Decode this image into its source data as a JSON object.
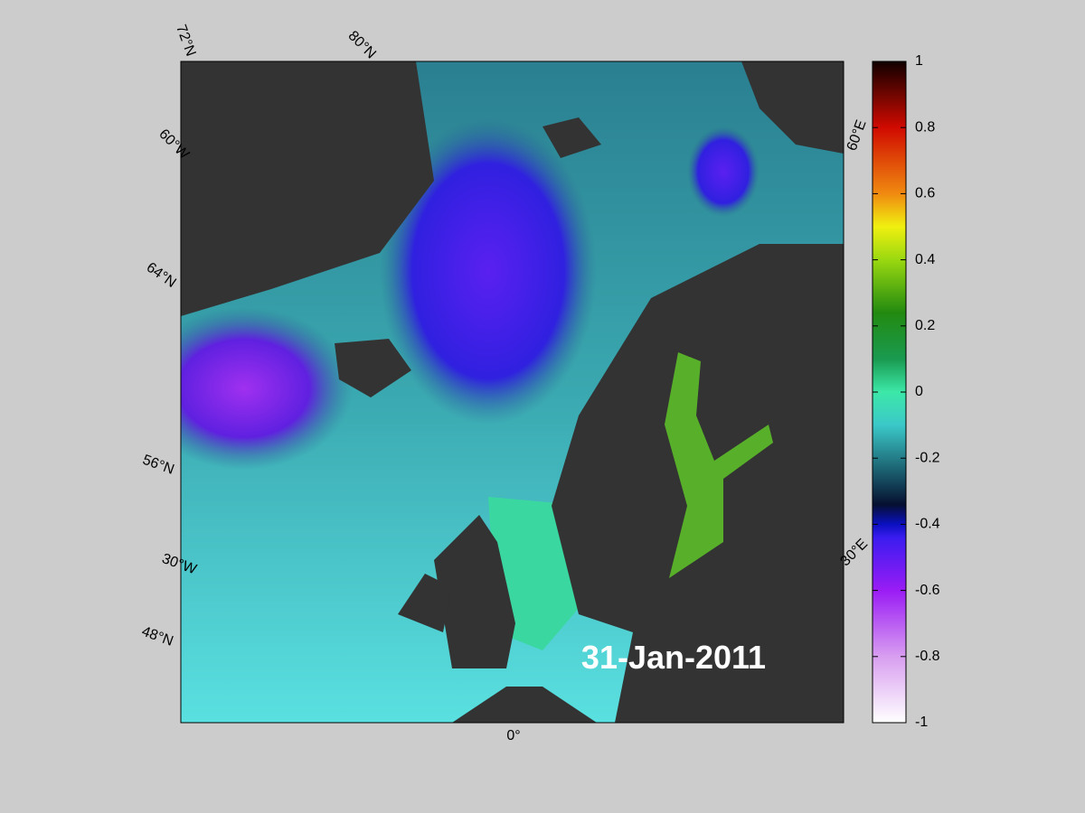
{
  "map": {
    "graticule_labels": [
      "72°N",
      "80°N",
      "60°W",
      "64°N",
      "56°N",
      "30°W",
      "48°N",
      "0°",
      "60°E",
      "30°E"
    ],
    "date": "31-Jan-2011"
  },
  "colorbar": {
    "lim": [
      -1,
      1
    ],
    "ticks": [
      -1,
      -0.8,
      -0.6,
      -0.4,
      -0.2,
      0,
      0.2,
      0.4,
      0.6,
      0.8,
      1
    ]
  }
}
